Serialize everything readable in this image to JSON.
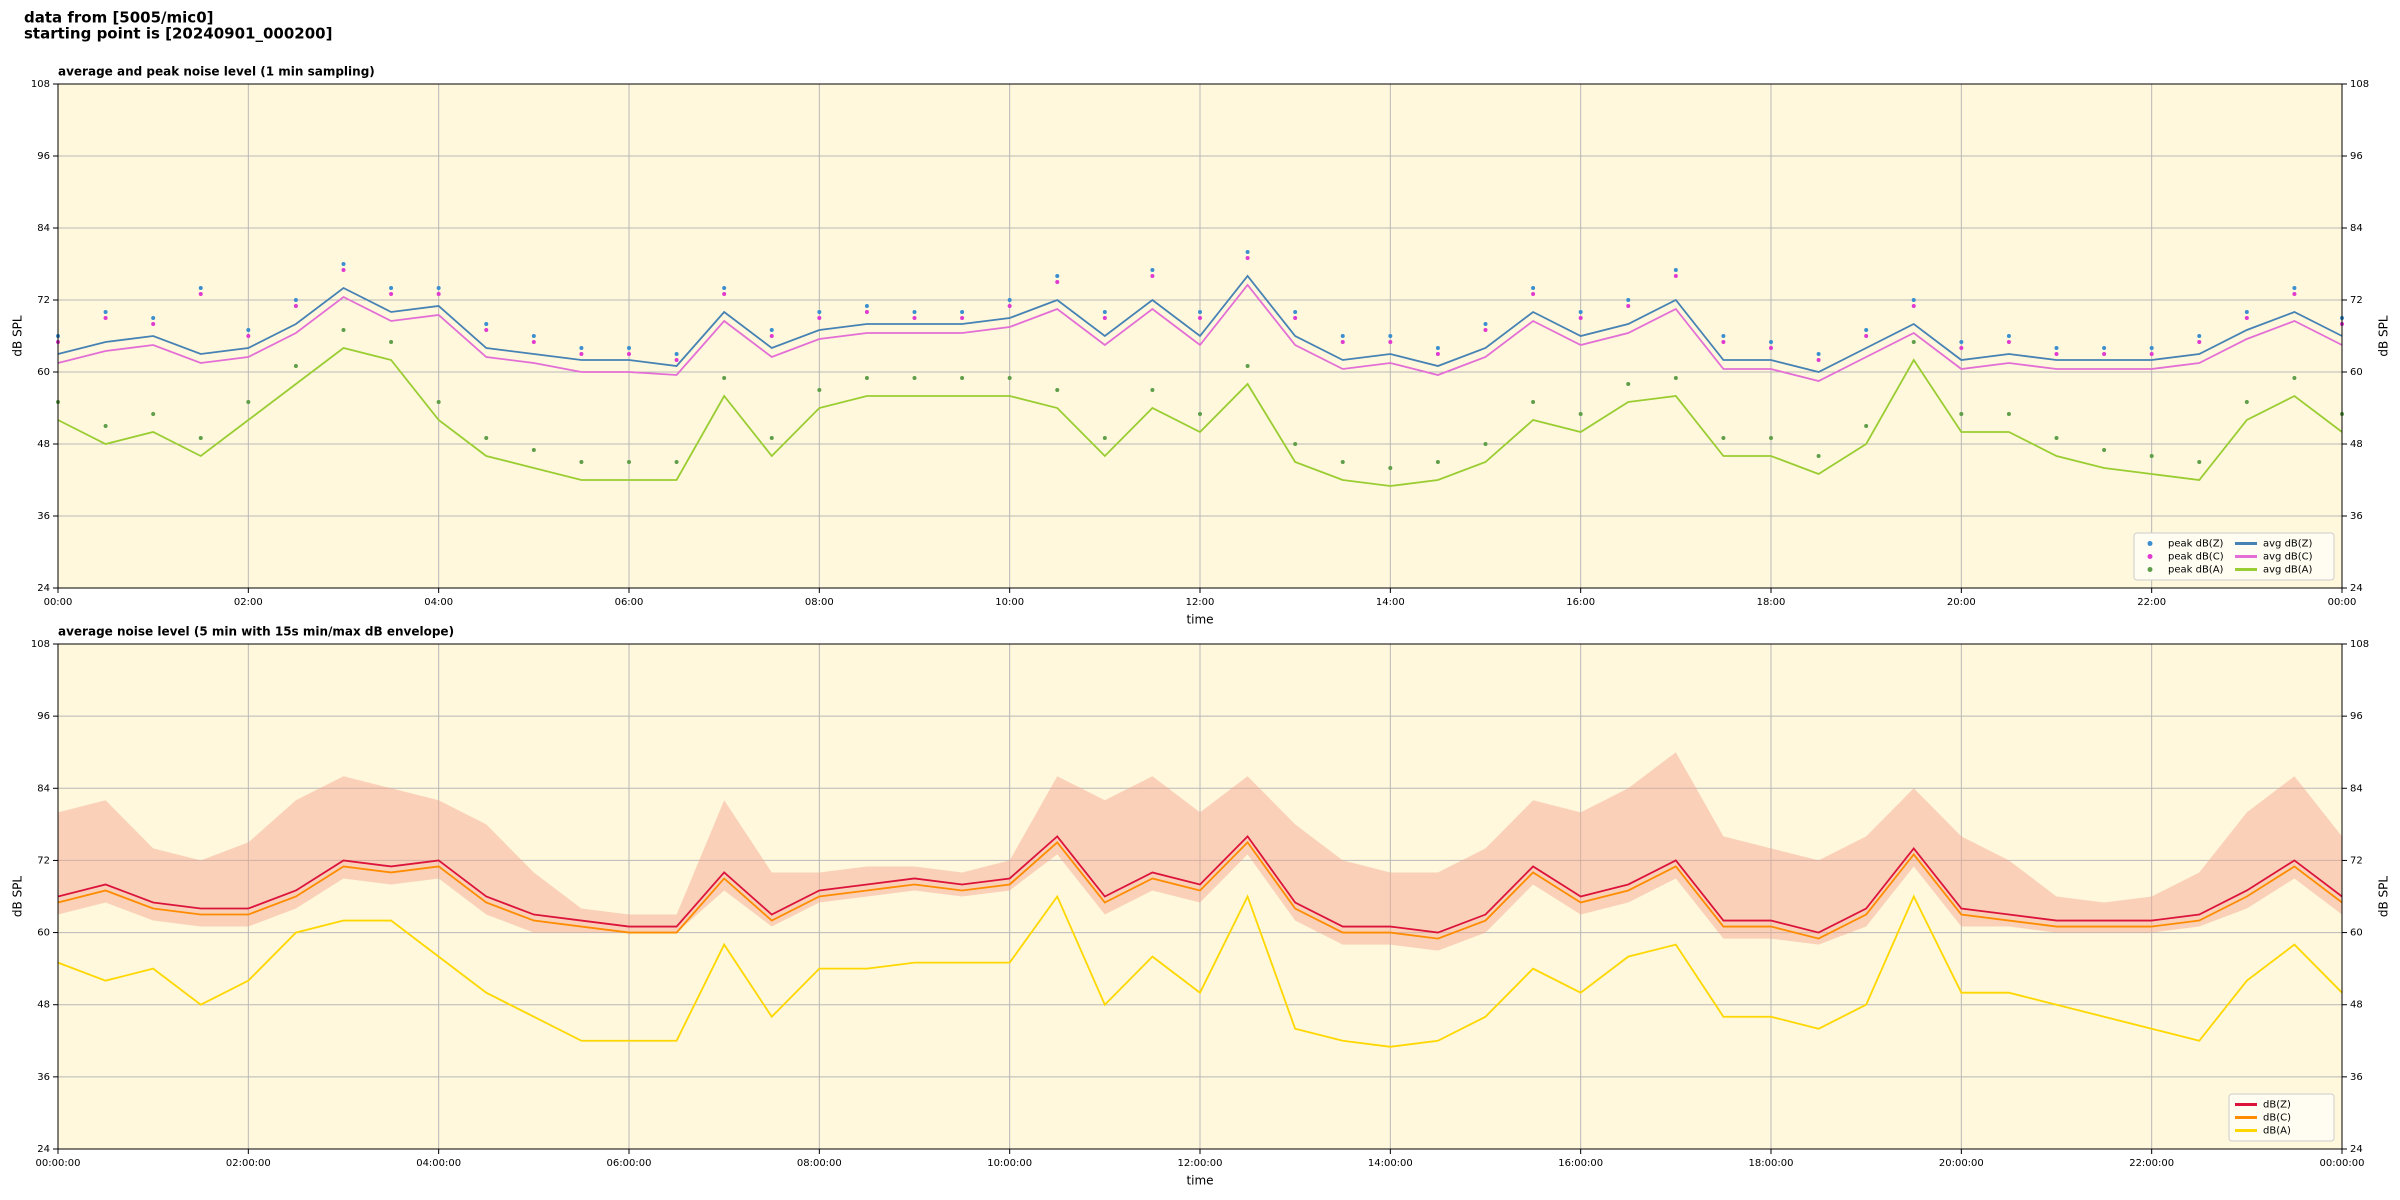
{
  "header": {
    "line1": "data from [5005/mic0]",
    "line2": "starting point is [20240901_000200]"
  },
  "chart_data": [
    {
      "type": "line",
      "title": "average and peak noise level (1 min sampling)",
      "xlabel": "time",
      "ylabel": "dB SPL",
      "y2label": "dB SPL",
      "xlim": [
        0,
        24
      ],
      "xticks": [
        {
          "value": 0,
          "label": "00:00"
        },
        {
          "value": 2,
          "label": "02:00"
        },
        {
          "value": 4,
          "label": "04:00"
        },
        {
          "value": 6,
          "label": "06:00"
        },
        {
          "value": 8,
          "label": "08:00"
        },
        {
          "value": 10,
          "label": "10:00"
        },
        {
          "value": 12,
          "label": "12:00"
        },
        {
          "value": 14,
          "label": "14:00"
        },
        {
          "value": 16,
          "label": "16:00"
        },
        {
          "value": 18,
          "label": "18:00"
        },
        {
          "value": 20,
          "label": "20:00"
        },
        {
          "value": 22,
          "label": "22:00"
        },
        {
          "value": 24,
          "label": "00:00"
        }
      ],
      "ylim": [
        24,
        108
      ],
      "yticks": [
        24,
        36,
        48,
        60,
        72,
        84,
        96,
        108
      ],
      "grid": true,
      "legend": "lower right",
      "legend_columns": 2,
      "x": [
        0,
        0.5,
        1,
        1.5,
        2,
        2.5,
        3,
        3.5,
        4,
        4.5,
        5,
        5.5,
        6,
        6.5,
        7,
        7.5,
        8,
        8.5,
        9,
        9.5,
        10,
        10.5,
        11,
        11.5,
        12,
        12.5,
        13,
        13.5,
        14,
        14.5,
        15,
        15.5,
        16,
        16.5,
        17,
        17.5,
        18,
        18.5,
        19,
        19.5,
        20,
        20.5,
        21,
        21.5,
        22,
        22.5,
        23,
        23.5,
        24
      ],
      "series": [
        {
          "name": "peak dB(Z)",
          "style": "scatter",
          "color": "#3b8fd0",
          "values": [
            66,
            70,
            69,
            74,
            67,
            72,
            78,
            74,
            74,
            68,
            66,
            64,
            64,
            63,
            74,
            67,
            70,
            71,
            70,
            70,
            72,
            76,
            70,
            77,
            70,
            80,
            70,
            66,
            66,
            64,
            68,
            74,
            70,
            72,
            77,
            66,
            65,
            63,
            67,
            72,
            65,
            66,
            64,
            64,
            64,
            66,
            70,
            74,
            69
          ]
        },
        {
          "name": "peak dB(C)",
          "style": "scatter",
          "color": "#e03ad0",
          "values": [
            65,
            69,
            68,
            73,
            66,
            71,
            77,
            73,
            73,
            67,
            65,
            63,
            63,
            62,
            73,
            66,
            69,
            70,
            69,
            69,
            71,
            75,
            69,
            76,
            69,
            79,
            69,
            65,
            65,
            63,
            67,
            73,
            69,
            71,
            76,
            65,
            64,
            62,
            66,
            71,
            64,
            65,
            63,
            63,
            63,
            65,
            69,
            73,
            68
          ]
        },
        {
          "name": "peak dB(A)",
          "style": "scatter",
          "color": "#5f9e4a",
          "values": [
            55,
            51,
            53,
            49,
            55,
            61,
            67,
            65,
            55,
            49,
            47,
            45,
            45,
            45,
            59,
            49,
            57,
            59,
            59,
            59,
            59,
            57,
            49,
            57,
            53,
            61,
            48,
            45,
            44,
            45,
            48,
            55,
            53,
            58,
            59,
            49,
            49,
            46,
            51,
            65,
            53,
            53,
            49,
            47,
            46,
            45,
            55,
            59,
            53
          ]
        },
        {
          "name": "avg dB(Z)",
          "style": "line",
          "color": "#4682b4",
          "values": [
            63,
            65,
            66,
            63,
            64,
            68,
            74,
            70,
            71,
            64,
            63,
            62,
            62,
            61,
            70,
            64,
            67,
            68,
            68,
            68,
            69,
            72,
            66,
            72,
            66,
            76,
            66,
            62,
            63,
            61,
            64,
            70,
            66,
            68,
            72,
            62,
            62,
            60,
            64,
            68,
            62,
            63,
            62,
            62,
            62,
            63,
            67,
            70,
            66
          ]
        },
        {
          "name": "avg dB(C)",
          "style": "line",
          "color": "#e36fd6",
          "values": [
            61.5,
            63.5,
            64.5,
            61.5,
            62.5,
            66.5,
            72.5,
            68.5,
            69.5,
            62.5,
            61.5,
            60,
            60,
            59.5,
            68.5,
            62.5,
            65.5,
            66.5,
            66.5,
            66.5,
            67.5,
            70.5,
            64.5,
            70.5,
            64.5,
            74.5,
            64.5,
            60.5,
            61.5,
            59.5,
            62.5,
            68.5,
            64.5,
            66.5,
            70.5,
            60.5,
            60.5,
            58.5,
            62.5,
            66.5,
            60.5,
            61.5,
            60.5,
            60.5,
            60.5,
            61.5,
            65.5,
            68.5,
            64.5
          ]
        },
        {
          "name": "avg dB(A)",
          "style": "line",
          "color": "#9acd32",
          "values": [
            52,
            48,
            50,
            46,
            52,
            58,
            64,
            62,
            52,
            46,
            44,
            42,
            42,
            42,
            56,
            46,
            54,
            56,
            56,
            56,
            56,
            54,
            46,
            54,
            50,
            58,
            45,
            42,
            41,
            42,
            45,
            52,
            50,
            55,
            56,
            46,
            46,
            43,
            48,
            62,
            50,
            50,
            46,
            44,
            43,
            42,
            52,
            56,
            50
          ]
        }
      ]
    },
    {
      "type": "line",
      "title": "average noise level (5 min with 15s min/max dB envelope)",
      "xlabel": "time",
      "ylabel": "dB SPL",
      "y2label": "dB SPL",
      "xlim": [
        0,
        24
      ],
      "xticks": [
        {
          "value": 0,
          "label": "00:00:00"
        },
        {
          "value": 2,
          "label": "02:00:00"
        },
        {
          "value": 4,
          "label": "04:00:00"
        },
        {
          "value": 6,
          "label": "06:00:00"
        },
        {
          "value": 8,
          "label": "08:00:00"
        },
        {
          "value": 10,
          "label": "10:00:00"
        },
        {
          "value": 12,
          "label": "12:00:00"
        },
        {
          "value": 14,
          "label": "14:00:00"
        },
        {
          "value": 16,
          "label": "16:00:00"
        },
        {
          "value": 18,
          "label": "18:00:00"
        },
        {
          "value": 20,
          "label": "20:00:00"
        },
        {
          "value": 22,
          "label": "22:00:00"
        },
        {
          "value": 24,
          "label": "00:00:00"
        }
      ],
      "ylim": [
        24,
        108
      ],
      "yticks": [
        24,
        36,
        48,
        60,
        72,
        84,
        96,
        108
      ],
      "grid": true,
      "legend": "lower right",
      "legend_columns": 1,
      "x": [
        0,
        0.5,
        1,
        1.5,
        2,
        2.5,
        3,
        3.5,
        4,
        4.5,
        5,
        5.5,
        6,
        6.5,
        7,
        7.5,
        8,
        8.5,
        9,
        9.5,
        10,
        10.5,
        11,
        11.5,
        12,
        12.5,
        13,
        13.5,
        14,
        14.5,
        15,
        15.5,
        16,
        16.5,
        17,
        17.5,
        18,
        18.5,
        19,
        19.5,
        20,
        20.5,
        21,
        21.5,
        22,
        22.5,
        23,
        23.5,
        24
      ],
      "envelope": {
        "color": "#f4a28c",
        "low": [
          63,
          65,
          62,
          61,
          61,
          64,
          69,
          68,
          69,
          63,
          60,
          60,
          60,
          60,
          67,
          61,
          65,
          66,
          67,
          66,
          67,
          73,
          63,
          67,
          65,
          73,
          62,
          58,
          58,
          57,
          60,
          68,
          63,
          65,
          69,
          59,
          59,
          58,
          61,
          71,
          61,
          61,
          60,
          60,
          60,
          61,
          64,
          69,
          63
        ],
        "high": [
          80,
          82,
          74,
          72,
          75,
          82,
          86,
          84,
          82,
          78,
          70,
          64,
          63,
          63,
          82,
          70,
          70,
          71,
          71,
          70,
          72,
          86,
          82,
          86,
          80,
          86,
          78,
          72,
          70,
          70,
          74,
          82,
          80,
          84,
          90,
          76,
          74,
          72,
          76,
          84,
          76,
          72,
          66,
          65,
          66,
          70,
          80,
          86,
          76
        ]
      },
      "series": [
        {
          "name": "dB(Z)",
          "style": "line",
          "color": "#dc143c",
          "values": [
            66,
            68,
            65,
            64,
            64,
            67,
            72,
            71,
            72,
            66,
            63,
            62,
            61,
            61,
            70,
            63,
            67,
            68,
            69,
            68,
            69,
            76,
            66,
            70,
            68,
            76,
            65,
            61,
            61,
            60,
            63,
            71,
            66,
            68,
            72,
            62,
            62,
            60,
            64,
            74,
            64,
            63,
            62,
            62,
            62,
            63,
            67,
            72,
            66
          ]
        },
        {
          "name": "dB(C)",
          "style": "line",
          "color": "#ff8c00",
          "values": [
            65,
            67,
            64,
            63,
            63,
            66,
            71,
            70,
            71,
            65,
            62,
            61,
            60,
            60,
            69,
            62,
            66,
            67,
            68,
            67,
            68,
            75,
            65,
            69,
            67,
            75,
            64,
            60,
            60,
            59,
            62,
            70,
            65,
            67,
            71,
            61,
            61,
            59,
            63,
            73,
            63,
            62,
            61,
            61,
            61,
            62,
            66,
            71,
            65
          ]
        },
        {
          "name": "dB(A)",
          "style": "line",
          "color": "#ffd700",
          "values": [
            55,
            52,
            54,
            48,
            52,
            60,
            62,
            62,
            56,
            50,
            46,
            42,
            42,
            42,
            58,
            46,
            54,
            54,
            55,
            55,
            55,
            66,
            48,
            56,
            50,
            66,
            44,
            42,
            41,
            42,
            46,
            54,
            50,
            56,
            58,
            46,
            46,
            44,
            48,
            66,
            50,
            50,
            48,
            46,
            44,
            42,
            52,
            58,
            50
          ]
        }
      ]
    }
  ]
}
